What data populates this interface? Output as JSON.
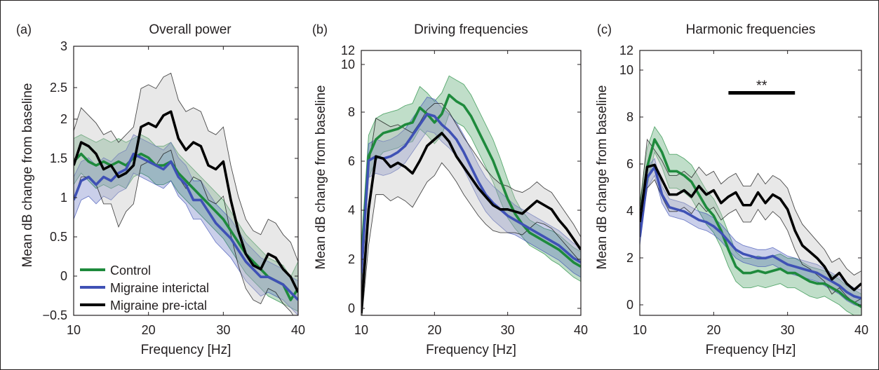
{
  "figure": {
    "legend": [
      {
        "label": "Control",
        "color": "#1e8a3c"
      },
      {
        "label": "Migraine interictal",
        "color": "#3f51b5"
      },
      {
        "label": "Migraine pre-ictal",
        "color": "#000000"
      }
    ]
  },
  "chart_data": [
    {
      "type": "line",
      "panel_label": "(a)",
      "title": "Overall power",
      "xlabel": "Frequency [Hz]",
      "ylabel": "Mean dB change from baseline",
      "xlim": [
        10,
        40
      ],
      "ylim": [
        -0.5,
        3
      ],
      "xticks": [
        "10",
        "20",
        "30",
        "40"
      ],
      "yticks": [
        "−0.5",
        "0",
        "0.5",
        "1",
        "1.5",
        "2",
        "2.5",
        "3"
      ],
      "x": [
        10,
        11,
        12,
        13,
        14,
        15,
        16,
        17,
        18,
        19,
        20,
        21,
        22,
        23,
        24,
        25,
        26,
        27,
        28,
        29,
        30,
        31,
        32,
        33,
        34,
        35,
        36,
        37,
        38,
        39,
        40
      ],
      "series": [
        {
          "name": "Control",
          "color": "#1e8a3c",
          "mean": [
            1.5,
            1.6,
            1.5,
            1.45,
            1.5,
            1.45,
            1.5,
            1.45,
            1.55,
            1.6,
            1.55,
            1.45,
            1.45,
            1.5,
            1.35,
            1.25,
            1.15,
            1.05,
            0.95,
            0.85,
            0.75,
            0.6,
            0.45,
            0.3,
            0.2,
            0.1,
            0.0,
            -0.05,
            -0.1,
            -0.3,
            -0.15
          ],
          "upper": [
            1.8,
            1.85,
            1.8,
            1.75,
            1.8,
            1.75,
            1.8,
            1.75,
            1.8,
            1.85,
            1.8,
            1.7,
            1.7,
            1.75,
            1.6,
            1.5,
            1.4,
            1.3,
            1.2,
            1.1,
            1.0,
            0.85,
            0.7,
            0.55,
            0.45,
            0.35,
            0.25,
            0.2,
            0.15,
            0.0,
            0.2
          ],
          "lower": [
            1.2,
            1.35,
            1.25,
            1.15,
            1.2,
            1.15,
            1.2,
            1.15,
            1.3,
            1.35,
            1.3,
            1.2,
            1.2,
            1.25,
            1.1,
            1.0,
            0.9,
            0.8,
            0.7,
            0.6,
            0.5,
            0.35,
            0.2,
            0.05,
            -0.05,
            -0.15,
            -0.25,
            -0.3,
            -0.35,
            -0.4,
            -0.45
          ]
        },
        {
          "name": "Migraine interictal",
          "color": "#3f51b5",
          "mean": [
            1.0,
            1.25,
            1.3,
            1.2,
            1.3,
            1.25,
            1.35,
            1.4,
            1.6,
            1.55,
            1.5,
            1.45,
            1.4,
            1.5,
            1.3,
            1.2,
            1.0,
            1.0,
            0.85,
            0.7,
            0.6,
            0.5,
            0.35,
            0.2,
            0.1,
            0.0,
            0.0,
            -0.05,
            -0.1,
            -0.2,
            -0.3
          ],
          "upper": [
            1.3,
            1.5,
            1.55,
            1.45,
            1.55,
            1.5,
            1.6,
            1.65,
            1.85,
            1.8,
            1.75,
            1.7,
            1.65,
            1.75,
            1.55,
            1.45,
            1.25,
            1.25,
            1.1,
            0.95,
            0.85,
            0.75,
            0.6,
            0.45,
            0.35,
            0.25,
            0.2,
            0.15,
            0.1,
            0.0,
            -0.05
          ],
          "lower": [
            0.75,
            1.0,
            1.05,
            0.95,
            1.05,
            1.0,
            1.1,
            1.15,
            1.35,
            1.3,
            1.25,
            1.2,
            1.15,
            1.25,
            1.05,
            0.95,
            0.75,
            0.75,
            0.6,
            0.45,
            0.35,
            0.25,
            0.1,
            -0.05,
            -0.15,
            -0.25,
            -0.2,
            -0.25,
            -0.3,
            -0.4,
            -0.5
          ]
        },
        {
          "name": "Migraine pre-ictal",
          "color": "#000000",
          "mean": [
            1.45,
            1.75,
            1.7,
            1.6,
            1.4,
            1.45,
            1.3,
            1.35,
            1.45,
            1.95,
            2.0,
            1.95,
            2.1,
            2.15,
            1.8,
            1.65,
            1.75,
            1.7,
            1.45,
            1.4,
            1.5,
            1.0,
            0.6,
            0.3,
            0.15,
            0.1,
            0.3,
            0.25,
            0.1,
            0.0,
            -0.2
          ],
          "upper": [
            1.9,
            2.2,
            2.1,
            2.0,
            1.85,
            1.9,
            1.75,
            1.85,
            1.95,
            2.45,
            2.5,
            2.45,
            2.6,
            2.65,
            2.3,
            2.15,
            2.2,
            2.15,
            1.9,
            1.85,
            1.95,
            1.45,
            1.05,
            0.75,
            0.6,
            0.55,
            0.75,
            0.7,
            0.55,
            0.45,
            0.2
          ],
          "lower": [
            1.0,
            1.3,
            1.3,
            1.2,
            0.95,
            0.95,
            0.65,
            0.85,
            0.95,
            1.45,
            1.5,
            1.45,
            1.6,
            1.65,
            1.3,
            1.15,
            1.3,
            1.25,
            1.0,
            0.95,
            1.05,
            0.55,
            0.15,
            -0.15,
            -0.3,
            -0.35,
            -0.15,
            -0.2,
            -0.35,
            -0.45,
            -0.6
          ]
        }
      ]
    },
    {
      "type": "line",
      "panel_label": "(b)",
      "title": "Driving frequencies",
      "xlabel": "Frequency [Hz]",
      "ylabel": "Mean dB change from baseline",
      "xlim": [
        10,
        40
      ],
      "ylim": [
        -0.5,
        12
      ],
      "xticks": [
        "10",
        "20",
        "30",
        "40"
      ],
      "yticks": [
        "0",
        "2",
        "4",
        "6",
        "8",
        "10",
        "12"
      ],
      "x": [
        10,
        11,
        12,
        13,
        14,
        15,
        16,
        17,
        18,
        19,
        20,
        21,
        22,
        23,
        24,
        25,
        26,
        27,
        28,
        29,
        30,
        31,
        32,
        33,
        34,
        35,
        36,
        37,
        38,
        39,
        40
      ],
      "series": [
        {
          "name": "Control",
          "color": "#1e8a3c",
          "mean": [
            2.0,
            7.0,
            7.8,
            8.1,
            8.2,
            8.3,
            8.5,
            8.6,
            9.3,
            9.0,
            8.6,
            9.0,
            9.9,
            9.6,
            9.4,
            8.9,
            8.2,
            7.5,
            6.8,
            5.9,
            5.0,
            4.3,
            3.8,
            3.4,
            3.2,
            3.0,
            2.8,
            2.6,
            2.3,
            2.0,
            1.8
          ],
          "upper": [
            2.8,
            8.0,
            8.8,
            9.0,
            9.1,
            9.2,
            9.4,
            9.5,
            10.3,
            10.0,
            9.6,
            10.0,
            10.8,
            10.6,
            10.4,
            9.9,
            9.2,
            8.5,
            7.8,
            6.9,
            5.9,
            5.0,
            4.4,
            4.0,
            3.8,
            3.6,
            3.5,
            3.3,
            3.0,
            2.7,
            2.5
          ],
          "lower": [
            1.2,
            6.0,
            6.8,
            7.2,
            7.3,
            7.4,
            7.6,
            7.7,
            8.3,
            8.0,
            7.6,
            8.0,
            9.0,
            8.6,
            8.4,
            7.9,
            7.2,
            6.5,
            5.8,
            4.9,
            4.1,
            3.6,
            3.2,
            2.8,
            2.6,
            2.4,
            2.1,
            1.9,
            1.6,
            1.3,
            1.1
          ]
        },
        {
          "name": "Migraine interictal",
          "color": "#3f51b5",
          "mean": [
            1.5,
            6.8,
            7.0,
            6.9,
            7.0,
            7.2,
            7.5,
            8.0,
            8.5,
            9.0,
            8.9,
            8.5,
            8.2,
            7.8,
            7.2,
            6.5,
            5.8,
            5.2,
            4.8,
            4.5,
            4.2,
            4.0,
            3.8,
            3.6,
            3.4,
            3.2,
            3.0,
            2.8,
            2.5,
            2.2,
            2.0
          ],
          "upper": [
            2.2,
            7.6,
            7.8,
            7.7,
            7.8,
            8.0,
            8.3,
            8.8,
            9.3,
            9.8,
            9.7,
            9.3,
            9.0,
            8.6,
            8.0,
            7.3,
            6.6,
            6.0,
            5.6,
            5.3,
            5.0,
            4.7,
            4.5,
            4.3,
            4.1,
            3.9,
            3.7,
            3.5,
            3.2,
            2.9,
            2.7
          ],
          "lower": [
            0.8,
            6.0,
            6.2,
            6.1,
            6.2,
            6.4,
            6.7,
            7.2,
            7.7,
            8.2,
            8.1,
            7.7,
            7.4,
            7.0,
            6.4,
            5.7,
            5.0,
            4.4,
            4.0,
            3.7,
            3.4,
            3.3,
            3.1,
            2.9,
            2.7,
            2.5,
            2.3,
            2.1,
            1.8,
            1.5,
            1.3
          ]
        },
        {
          "name": "Migraine pre-ictal",
          "color": "#000000",
          "mean": [
            -0.4,
            4.5,
            7.0,
            6.9,
            6.5,
            6.7,
            6.5,
            6.2,
            6.8,
            7.5,
            7.8,
            8.1,
            7.7,
            7.0,
            6.5,
            6.0,
            5.5,
            5.1,
            4.7,
            4.5,
            4.5,
            4.4,
            4.3,
            4.6,
            4.9,
            4.7,
            4.5,
            4.0,
            3.6,
            3.1,
            2.6
          ],
          "upper": [
            0.5,
            6.5,
            8.8,
            8.6,
            8.4,
            8.5,
            8.3,
            8.1,
            8.6,
            9.2,
            9.5,
            9.5,
            9.1,
            8.5,
            7.9,
            7.4,
            6.9,
            6.4,
            6.0,
            5.7,
            5.6,
            5.4,
            5.3,
            5.5,
            5.8,
            5.5,
            5.3,
            4.8,
            4.3,
            3.8,
            3.2
          ],
          "lower": [
            -0.9,
            2.8,
            5.2,
            5.2,
            4.9,
            5.1,
            4.9,
            4.6,
            5.2,
            5.8,
            6.1,
            6.7,
            6.3,
            5.8,
            5.2,
            4.7,
            4.2,
            3.8,
            3.5,
            3.4,
            3.4,
            3.4,
            3.3,
            3.6,
            3.9,
            3.8,
            3.6,
            3.2,
            2.8,
            2.4,
            2.0
          ]
        }
      ]
    },
    {
      "type": "line",
      "panel_label": "(c)",
      "title": "Harmonic frequencies",
      "xlabel": "Frequency [Hz]",
      "ylabel": "Mean dB change from baseline",
      "xlim": [
        10,
        40
      ],
      "ylim": [
        -0.5,
        12
      ],
      "xticks": [
        "10",
        "20",
        "30",
        "40"
      ],
      "yticks": [
        "0",
        "2",
        "4",
        "6",
        "8",
        "10",
        "12"
      ],
      "annotation": {
        "text": "**",
        "x_start": 22,
        "x_end": 31,
        "y": 10
      },
      "x": [
        10,
        11,
        12,
        13,
        14,
        15,
        16,
        17,
        18,
        19,
        20,
        21,
        22,
        23,
        24,
        25,
        26,
        27,
        28,
        29,
        30,
        31,
        32,
        33,
        34,
        35,
        36,
        37,
        38,
        39,
        40
      ],
      "series": [
        {
          "name": "Control",
          "color": "#1e8a3c",
          "mean": [
            4.0,
            6.5,
            7.8,
            7.2,
            6.3,
            6.3,
            6.1,
            5.8,
            5.2,
            4.6,
            4.2,
            3.5,
            2.6,
            1.8,
            1.5,
            1.5,
            1.6,
            1.5,
            1.6,
            1.7,
            1.5,
            1.5,
            1.3,
            1.1,
            1.0,
            1.0,
            0.8,
            0.6,
            0.3,
            0.1,
            -0.1
          ],
          "upper": [
            4.8,
            7.4,
            8.4,
            7.9,
            7.1,
            7.1,
            6.9,
            6.6,
            6.0,
            5.4,
            5.0,
            4.3,
            3.4,
            2.5,
            2.2,
            2.2,
            2.3,
            2.2,
            2.3,
            2.4,
            2.2,
            2.2,
            2.0,
            1.8,
            1.7,
            1.6,
            1.4,
            1.2,
            0.9,
            0.7,
            0.5
          ],
          "lower": [
            3.2,
            5.6,
            7.2,
            6.5,
            5.5,
            5.5,
            5.3,
            5.0,
            4.4,
            3.8,
            3.4,
            2.7,
            1.8,
            1.1,
            0.8,
            0.8,
            0.9,
            0.8,
            0.9,
            1.0,
            0.8,
            0.8,
            0.6,
            0.4,
            0.3,
            0.4,
            0.2,
            0.0,
            -0.3,
            -0.5,
            -0.6
          ]
        },
        {
          "name": "Migraine interictal",
          "color": "#3f51b5",
          "mean": [
            3.2,
            6.0,
            6.5,
            5.2,
            4.6,
            4.5,
            4.4,
            4.2,
            4.0,
            3.9,
            3.7,
            3.4,
            3.0,
            2.6,
            2.4,
            2.3,
            2.2,
            2.2,
            2.3,
            2.1,
            1.9,
            1.8,
            1.7,
            1.6,
            1.5,
            1.3,
            1.1,
            0.9,
            0.6,
            0.4,
            0.3
          ],
          "upper": [
            3.6,
            6.5,
            6.9,
            5.6,
            5.0,
            4.9,
            4.8,
            4.6,
            4.4,
            4.3,
            4.1,
            3.8,
            3.4,
            3.0,
            2.8,
            2.7,
            2.6,
            2.6,
            2.7,
            2.5,
            2.3,
            2.2,
            2.1,
            2.0,
            1.9,
            1.7,
            1.5,
            1.3,
            1.0,
            0.8,
            0.7
          ],
          "lower": [
            2.8,
            5.5,
            6.1,
            4.8,
            4.2,
            4.1,
            4.0,
            3.8,
            3.6,
            3.5,
            3.3,
            3.0,
            2.6,
            2.2,
            2.0,
            1.9,
            1.8,
            1.8,
            1.9,
            1.7,
            1.5,
            1.4,
            1.3,
            1.2,
            1.1,
            0.9,
            0.7,
            0.5,
            0.2,
            0.0,
            -0.1
          ]
        },
        {
          "name": "Migraine pre-ictal",
          "color": "#000000",
          "mean": [
            3.9,
            6.5,
            6.6,
            5.9,
            5.2,
            5.2,
            5.4,
            5.1,
            5.6,
            5.2,
            5.4,
            4.8,
            5.1,
            5.3,
            4.7,
            4.7,
            5.3,
            4.8,
            5.2,
            5.0,
            4.5,
            3.5,
            2.8,
            2.5,
            2.2,
            1.8,
            1.2,
            1.5,
            1.0,
            0.7,
            1.0
          ],
          "upper": [
            4.5,
            7.8,
            7.3,
            6.8,
            6.1,
            6.1,
            6.3,
            6.0,
            6.5,
            6.1,
            6.3,
            5.7,
            6.0,
            6.2,
            5.6,
            5.6,
            6.2,
            5.7,
            6.1,
            5.9,
            5.5,
            4.5,
            3.8,
            3.4,
            3.0,
            2.6,
            2.0,
            2.2,
            1.7,
            1.4,
            1.6
          ],
          "lower": [
            3.3,
            5.5,
            5.9,
            5.1,
            4.4,
            4.4,
            4.6,
            4.3,
            4.8,
            4.4,
            4.6,
            4.0,
            4.3,
            4.5,
            3.9,
            3.9,
            4.5,
            4.0,
            4.4,
            4.1,
            3.5,
            2.6,
            1.9,
            1.7,
            1.4,
            1.1,
            0.5,
            0.8,
            0.4,
            0.1,
            0.3
          ]
        }
      ]
    }
  ]
}
